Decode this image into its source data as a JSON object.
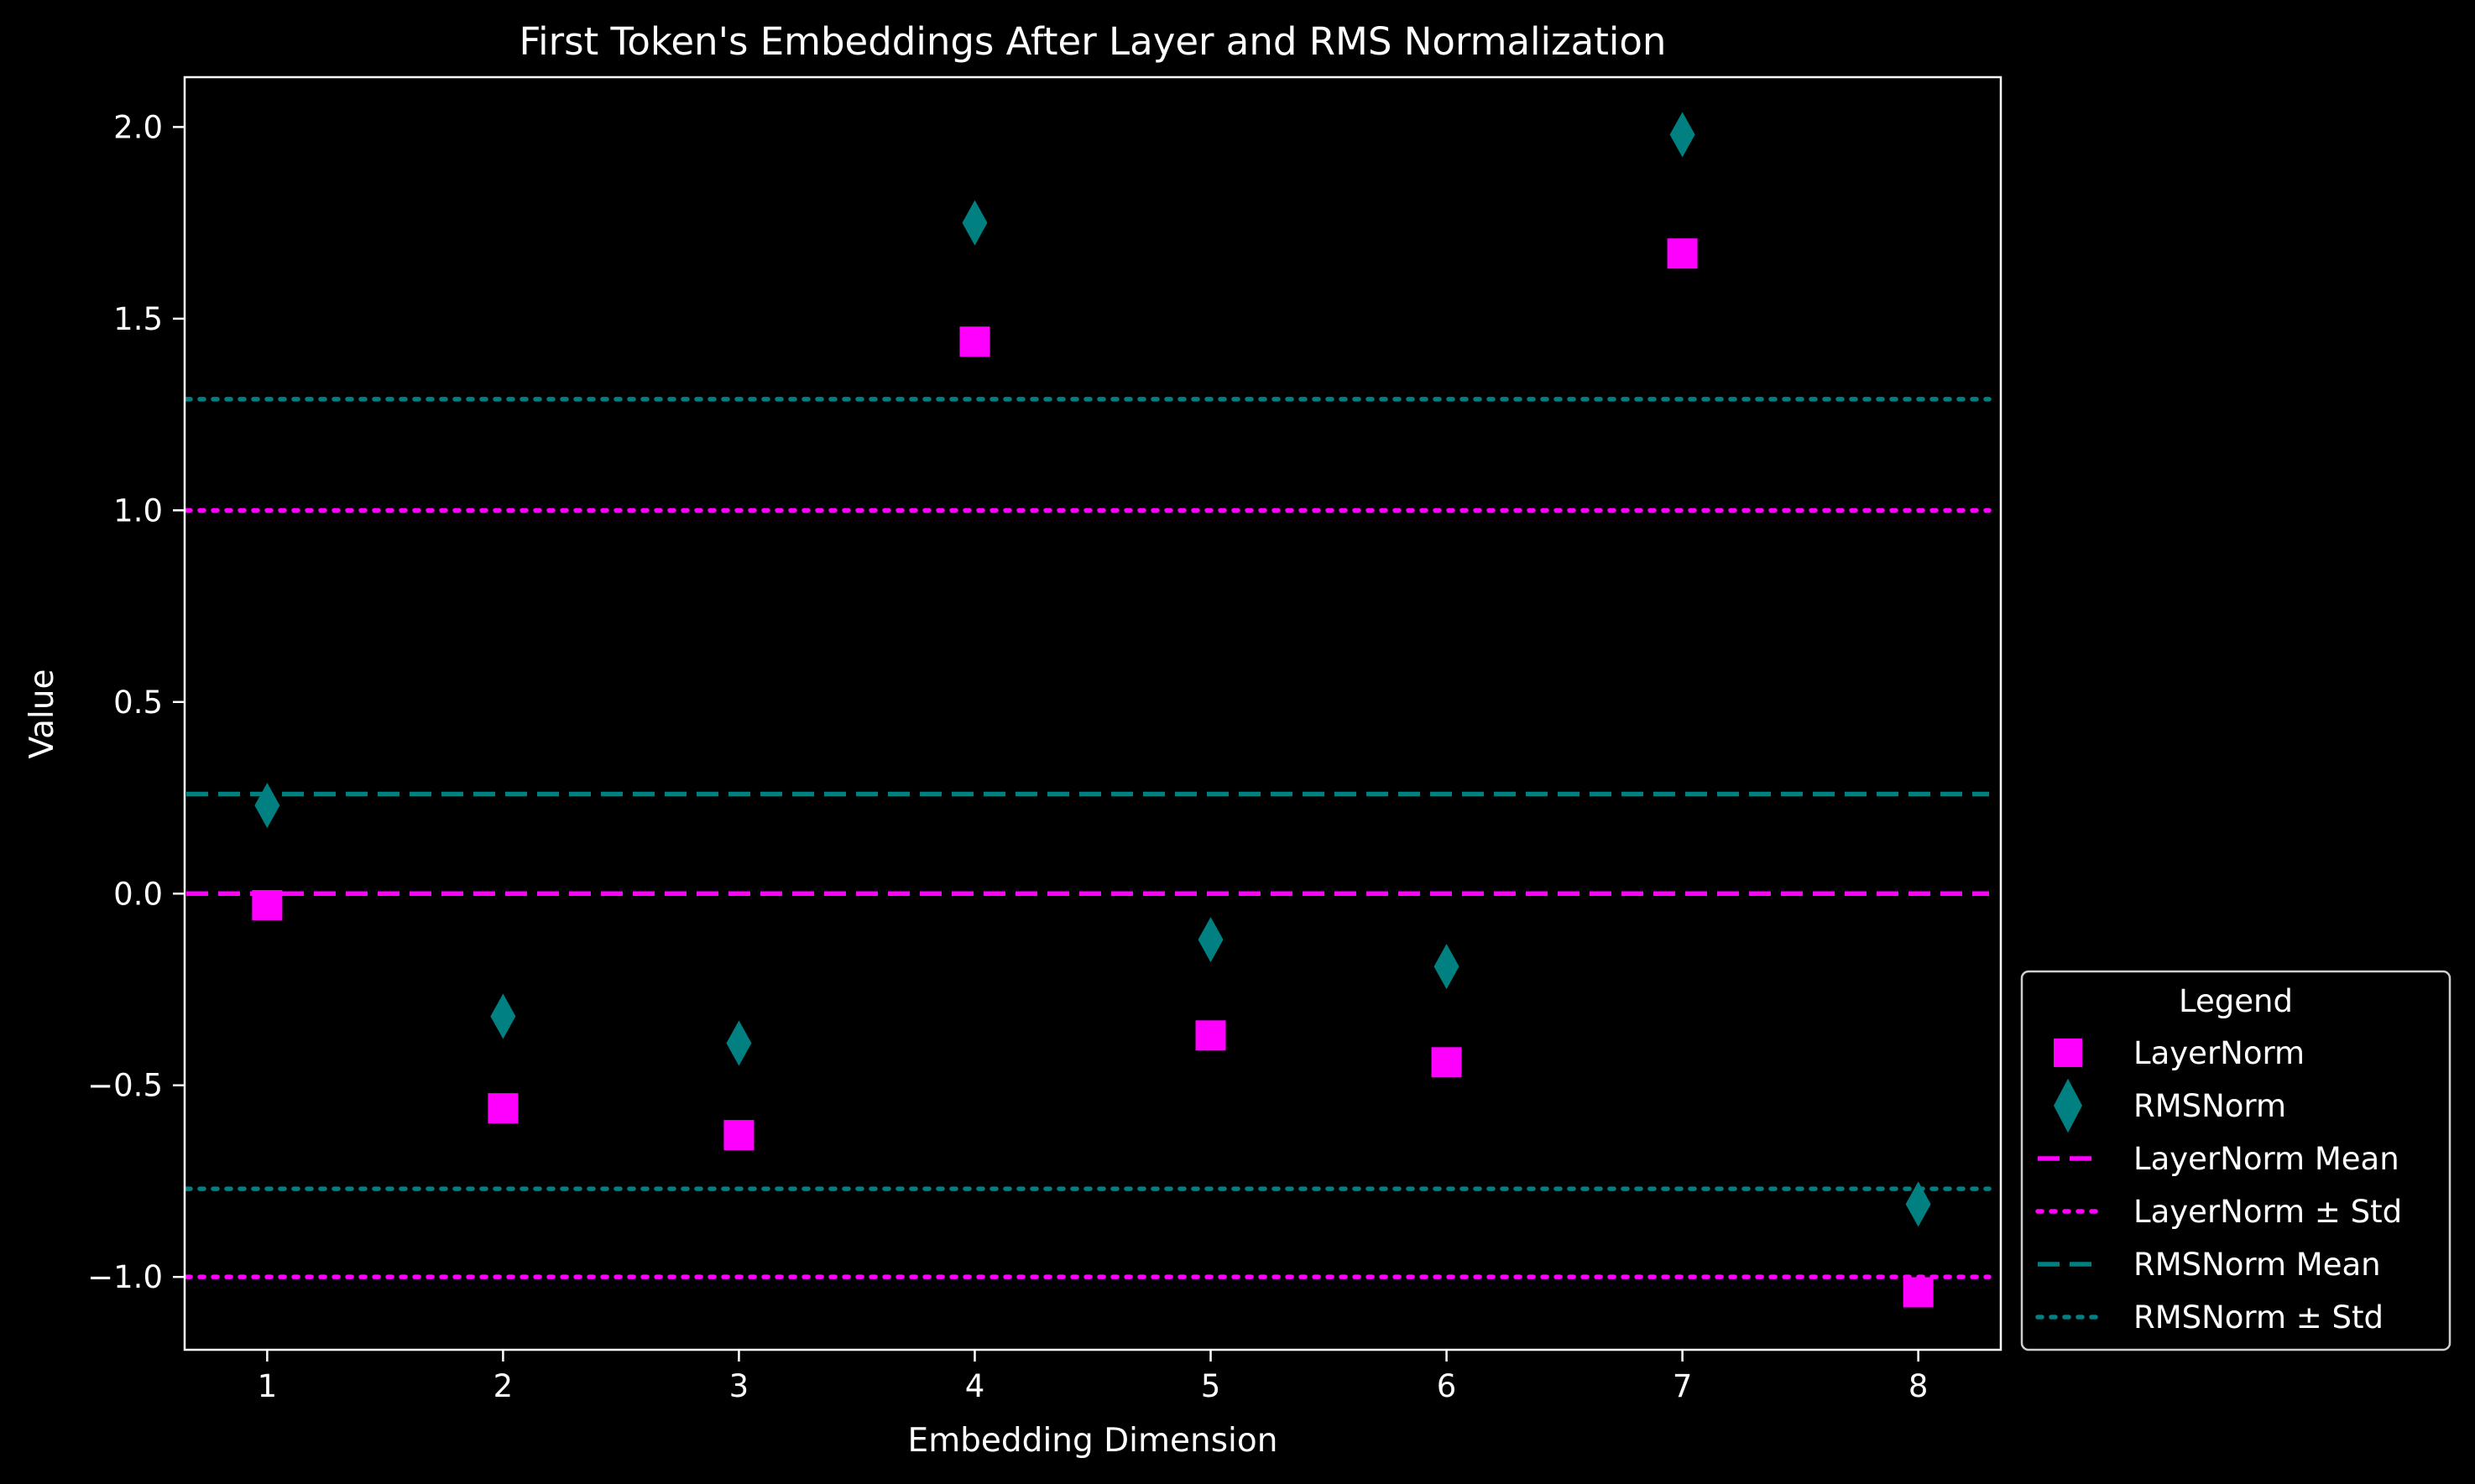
{
  "chart_data": {
    "type": "scatter",
    "title": "First Token's Embeddings After Layer and RMS Normalization",
    "xlabel": "Embedding Dimension",
    "ylabel": "Value",
    "x": [
      1,
      2,
      3,
      4,
      5,
      6,
      7,
      8
    ],
    "xticks": [
      "1",
      "2",
      "3",
      "4",
      "5",
      "6",
      "7",
      "8"
    ],
    "yticks": [
      {
        "value": -1.0,
        "label": "−1.0"
      },
      {
        "value": -0.5,
        "label": "−0.5"
      },
      {
        "value": 0.0,
        "label": "0.0"
      },
      {
        "value": 0.5,
        "label": "0.5"
      },
      {
        "value": 1.0,
        "label": "1.0"
      },
      {
        "value": 1.5,
        "label": "1.5"
      },
      {
        "value": 2.0,
        "label": "2.0"
      }
    ],
    "xlim": [
      0.65,
      8.35
    ],
    "ylim": [
      -1.19,
      2.13
    ],
    "grid": false,
    "legend_position": "outside-bottom-right",
    "legend_title": "Legend",
    "series": [
      {
        "name": "LayerNorm",
        "marker": "square",
        "color": "#ff00ff",
        "values": [
          -0.03,
          -0.56,
          -0.63,
          1.44,
          -0.37,
          -0.44,
          1.67,
          -1.04
        ]
      },
      {
        "name": "RMSNorm",
        "marker": "diamond",
        "color": "#008080",
        "values": [
          0.23,
          -0.32,
          -0.39,
          1.75,
          -0.12,
          -0.19,
          1.98,
          -0.81
        ]
      }
    ],
    "reference_lines": [
      {
        "name": "LayerNorm Mean",
        "style": "dashed",
        "color": "#ff00ff",
        "values": [
          0.0
        ]
      },
      {
        "name": "LayerNorm ± Std",
        "style": "dotted",
        "color": "#ff00ff",
        "values": [
          1.0,
          -1.0
        ]
      },
      {
        "name": "RMSNorm Mean",
        "style": "dashed",
        "color": "#008080",
        "values": [
          0.26
        ]
      },
      {
        "name": "RMSNorm ± Std",
        "style": "dotted",
        "color": "#008080",
        "values": [
          1.29,
          -0.77
        ]
      }
    ]
  }
}
